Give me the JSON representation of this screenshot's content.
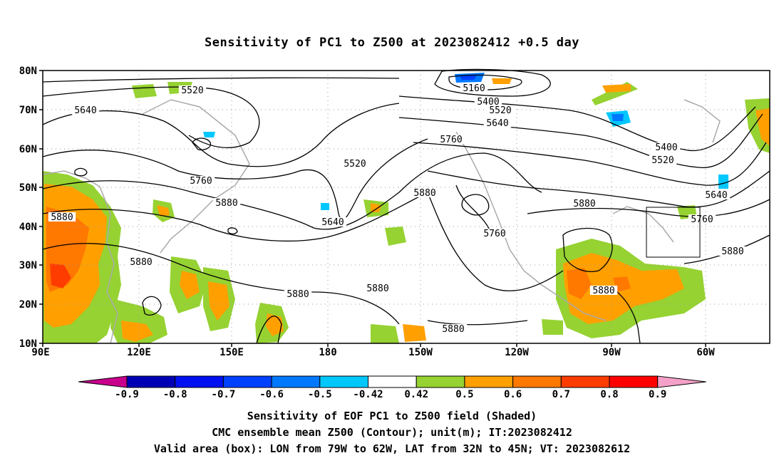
{
  "title": "Sensitivity of PC1 to Z500 at 2023082412 +0.5 day",
  "lat_labels": [
    "80N",
    "70N",
    "60N",
    "50N",
    "40N",
    "30N",
    "20N",
    "10N"
  ],
  "lon_labels": [
    "90E",
    "120E",
    "150E",
    "180",
    "150W",
    "120W",
    "90W",
    "60W"
  ],
  "contour_labels": [
    "5520",
    "5640",
    "5160",
    "5400",
    "5520",
    "5640",
    "5760",
    "5400",
    "5520",
    "5640",
    "5760",
    "5880",
    "5880",
    "5640",
    "5520",
    "5880",
    "5760",
    "5880",
    "5760",
    "5880",
    "5880",
    "5880",
    "5880",
    "5880",
    "5880"
  ],
  "colorbar": {
    "ticks": [
      "-0.9",
      "-0.8",
      "-0.7",
      "-0.6",
      "-0.5",
      "-0.42",
      "0.42",
      "0.5",
      "0.6",
      "0.7",
      "0.8",
      "0.9"
    ],
    "colors": [
      "#c8008c",
      "#0000b4",
      "#0010f0",
      "#0040ff",
      "#0078ff",
      "#00c8ff",
      "#ffffff",
      "#96d232",
      "#ffa000",
      "#ff7800",
      "#ff3c00",
      "#ff0000",
      "#f5a0c8"
    ]
  },
  "valid_box": {
    "lon_from": "79W",
    "lon_to": "62W",
    "lat_from": "32N",
    "lat_to": "45N"
  },
  "captions": [
    "Sensitivity of EOF PC1 to Z500 field (Shaded)",
    "CMC ensemble mean Z500 (Contour); unit(m); IT:2023082412",
    "Valid area (box): LON from 79W to 62W, LAT from 32N to 45N; VT: 2023082612"
  ]
}
